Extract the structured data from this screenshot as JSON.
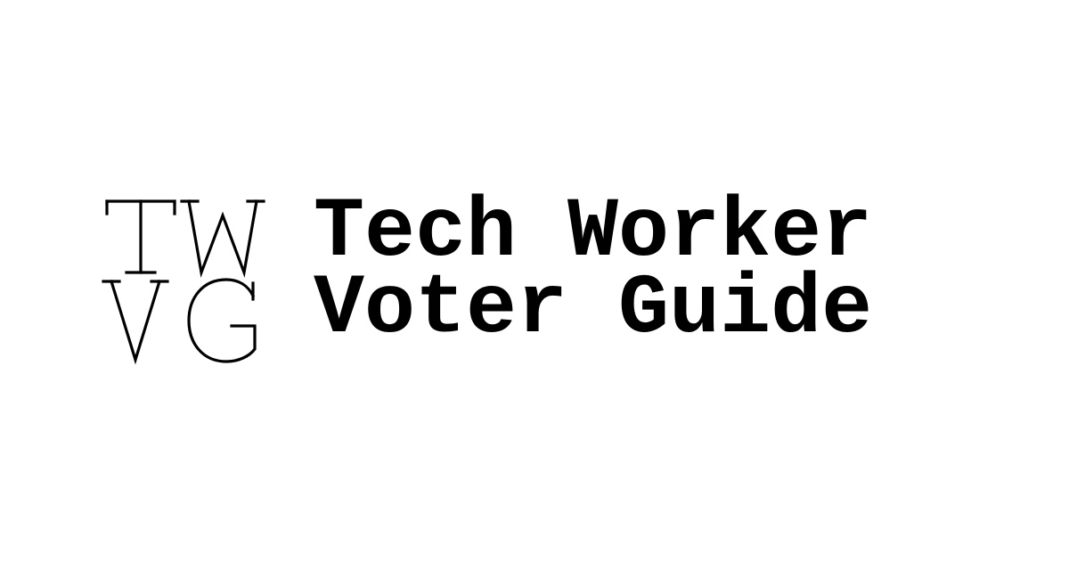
{
  "logo": {
    "monogram_top": "TW",
    "monogram_bottom": "VG"
  },
  "wordmark": {
    "line1": "Tech Worker",
    "line2": "Voter Guide"
  },
  "colors": {
    "background": "#ffffff",
    "text": "#000000"
  }
}
